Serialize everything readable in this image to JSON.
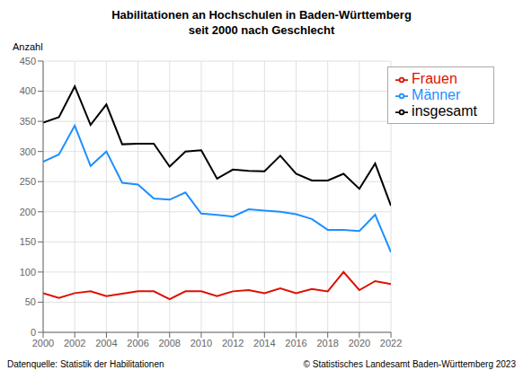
{
  "chart_data": {
    "type": "line",
    "title": "Habilitationen an Hochschulen in Baden-Württemberg",
    "subtitle": "seit 2000 nach Geschlecht",
    "y_label": "Anzahl",
    "x": [
      2000,
      2001,
      2002,
      2003,
      2004,
      2005,
      2006,
      2007,
      2008,
      2009,
      2010,
      2011,
      2012,
      2013,
      2014,
      2015,
      2016,
      2017,
      2018,
      2019,
      2020,
      2021,
      2022
    ],
    "series": [
      {
        "name": "insgesamt",
        "color": "#000000",
        "values": [
          348,
          357,
          408,
          344,
          378,
          312,
          313,
          313,
          275,
          300,
          302,
          255,
          270,
          268,
          267,
          293,
          263,
          252,
          252,
          263,
          238,
          280,
          210
        ]
      },
      {
        "name": "Männer",
        "color": "#1e8fff",
        "values": [
          283,
          295,
          343,
          276,
          300,
          248,
          245,
          222,
          220,
          232,
          197,
          195,
          192,
          204,
          202,
          200,
          196,
          188,
          170,
          170,
          168,
          195,
          133
        ]
      },
      {
        "name": "Frauen",
        "color": "#dd1100",
        "values": [
          65,
          57,
          65,
          68,
          60,
          64,
          68,
          68,
          55,
          68,
          68,
          60,
          68,
          70,
          65,
          73,
          65,
          72,
          68,
          100,
          70,
          85,
          80
        ]
      }
    ],
    "xlim": [
      2000,
      2022
    ],
    "xticks": [
      2000,
      2002,
      2004,
      2006,
      2008,
      2010,
      2012,
      2014,
      2016,
      2018,
      2020,
      2022
    ],
    "ylim": [
      0,
      450
    ],
    "yticks": [
      0,
      50,
      100,
      150,
      200,
      250,
      300,
      350,
      400,
      450
    ],
    "grid": true,
    "legend": "upper right",
    "annotations": [
      "Datenquelle: Statistik der Habilitationen",
      "© Statistisches Landesamt Baden-Württemberg 2023"
    ]
  }
}
